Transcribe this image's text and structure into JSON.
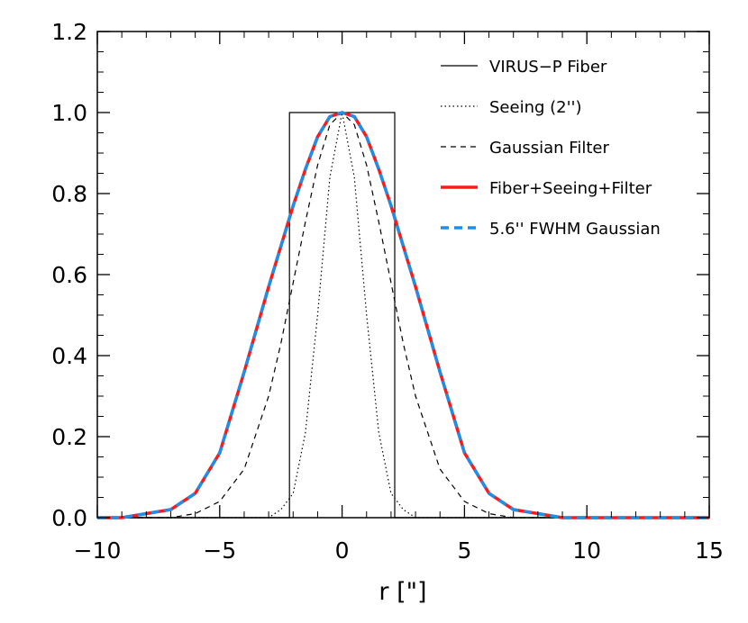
{
  "chart_data": {
    "type": "line",
    "title": "",
    "xlabel": "r [\"]",
    "ylabel": "",
    "xlim": [
      -10,
      15
    ],
    "ylim": [
      0,
      1.2
    ],
    "x_ticks": [
      -10,
      -5,
      0,
      5,
      10,
      15
    ],
    "x_tick_labels": [
      "−10",
      "−5",
      "0",
      "5",
      "10",
      "15"
    ],
    "y_ticks": [
      0,
      0.2,
      0.4,
      0.6,
      0.8,
      1.0,
      1.2
    ],
    "y_tick_labels": [
      "0.0",
      "0.2",
      "0.4",
      "0.6",
      "0.8",
      "1.0",
      "1.2"
    ],
    "grid": false,
    "legend_position": "top-right",
    "series": [
      {
        "name": "VIRUS−P Fiber",
        "style": "solid-thin",
        "color": "#000000",
        "x": [
          -10,
          -2.15,
          -2.15,
          2.15,
          2.15,
          15
        ],
        "y": [
          0,
          0,
          1.0,
          1.0,
          0,
          0
        ]
      },
      {
        "name": "Seeing (2'')",
        "style": "dotted",
        "color": "#000000",
        "x": [
          -10,
          -4,
          -3,
          -2.5,
          -2,
          -1.5,
          -1,
          -0.5,
          0,
          0.5,
          1,
          1.5,
          2,
          2.5,
          3,
          4,
          15
        ],
        "y": [
          0,
          0.0,
          0.0,
          0.02,
          0.06,
          0.21,
          0.5,
          0.84,
          1.0,
          0.84,
          0.5,
          0.21,
          0.06,
          0.02,
          0.0,
          0.0,
          0
        ]
      },
      {
        "name": "Gaussian Filter",
        "style": "dashed",
        "color": "#000000",
        "x": [
          -10,
          -8,
          -7,
          -6,
          -5,
          -4,
          -3,
          -2.5,
          -2,
          -1.5,
          -1,
          -0.5,
          0,
          0.5,
          1,
          1.5,
          2,
          2.5,
          3,
          4,
          5,
          6,
          7,
          8,
          15
        ],
        "y": [
          0,
          0.0,
          0.0,
          0.01,
          0.04,
          0.12,
          0.3,
          0.43,
          0.58,
          0.73,
          0.87,
          0.97,
          1.0,
          0.97,
          0.87,
          0.73,
          0.58,
          0.43,
          0.3,
          0.12,
          0.04,
          0.01,
          0.0,
          0.0,
          0
        ]
      },
      {
        "name": "Fiber+Seeing+Filter",
        "style": "solid-thick",
        "color": "#ff1a1a",
        "x": [
          -10,
          -9,
          -8,
          -7,
          -6,
          -5,
          -4,
          -3,
          -2.5,
          -2,
          -1.5,
          -1,
          -0.5,
          0,
          0.5,
          1,
          1.5,
          2,
          2.5,
          3,
          4,
          5,
          6,
          7,
          8,
          9,
          15
        ],
        "y": [
          0,
          0.0,
          0.01,
          0.02,
          0.06,
          0.16,
          0.36,
          0.57,
          0.67,
          0.77,
          0.86,
          0.94,
          0.99,
          1.0,
          0.99,
          0.94,
          0.86,
          0.77,
          0.67,
          0.57,
          0.36,
          0.16,
          0.06,
          0.02,
          0.01,
          0.0,
          0
        ]
      },
      {
        "name": "5.6'' FWHM Gaussian",
        "style": "dashed-thick",
        "color": "#1e8fe6",
        "x": [
          -10,
          -9,
          -8,
          -7,
          -6,
          -5,
          -4,
          -3,
          -2.5,
          -2,
          -1.5,
          -1,
          -0.5,
          0,
          0.5,
          1,
          1.5,
          2,
          2.5,
          3,
          4,
          5,
          6,
          7,
          8,
          9,
          15
        ],
        "y": [
          0,
          0.0,
          0.01,
          0.02,
          0.06,
          0.16,
          0.36,
          0.57,
          0.67,
          0.77,
          0.86,
          0.94,
          0.99,
          1.0,
          0.99,
          0.94,
          0.86,
          0.77,
          0.67,
          0.57,
          0.36,
          0.16,
          0.06,
          0.02,
          0.01,
          0.0,
          0
        ]
      }
    ]
  }
}
